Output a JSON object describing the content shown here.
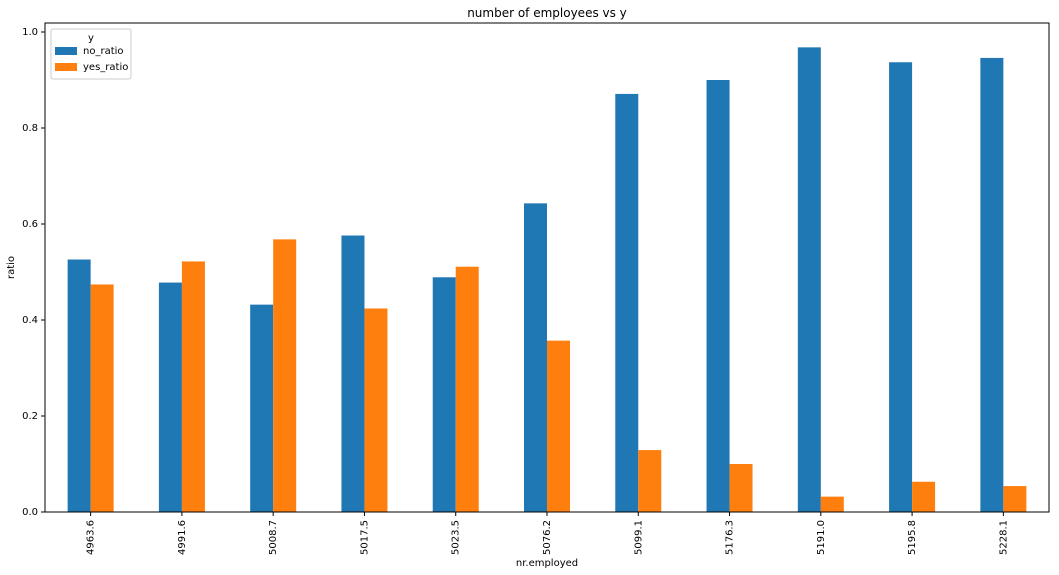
{
  "chart_data": {
    "type": "bar",
    "title": "number of employees vs y",
    "xlabel": "nr.employed",
    "ylabel": "ratio",
    "ylim": [
      0,
      1.0
    ],
    "yticks": [
      "0.0",
      "0.2",
      "0.4",
      "0.6",
      "0.8",
      "1.0"
    ],
    "categories": [
      "4963.6",
      "4991.6",
      "5008.7",
      "5017.5",
      "5023.5",
      "5076.2",
      "5099.1",
      "5176.3",
      "5191.0",
      "5195.8",
      "5228.1"
    ],
    "legend": {
      "title": "y",
      "placement": "top-left"
    },
    "series": [
      {
        "name": "no_ratio",
        "color": "#1f77b4",
        "values": [
          0.526,
          0.478,
          0.432,
          0.576,
          0.489,
          0.643,
          0.871,
          0.9,
          0.968,
          0.937,
          0.946
        ]
      },
      {
        "name": "yes_ratio",
        "color": "#ff7f0e",
        "values": [
          0.474,
          0.522,
          0.568,
          0.424,
          0.511,
          0.357,
          0.129,
          0.1,
          0.032,
          0.063,
          0.054
        ]
      }
    ],
    "grid": false
  }
}
